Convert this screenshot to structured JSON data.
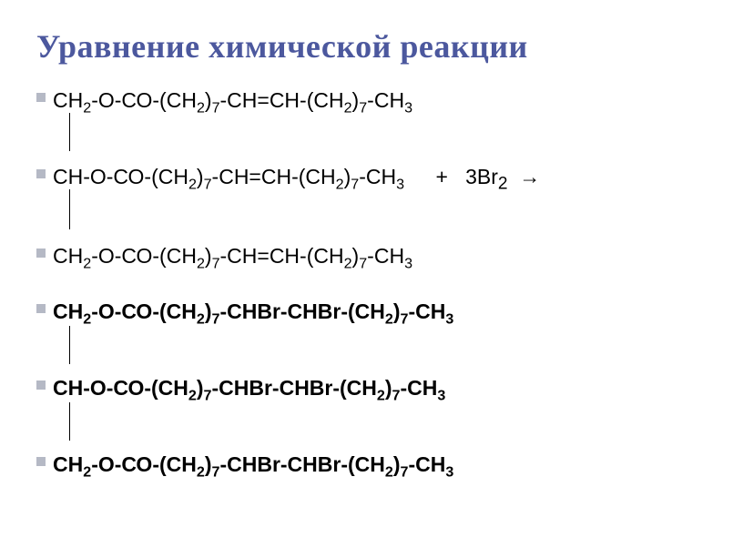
{
  "slide": {
    "title": "Уравнение химической реакции",
    "title_color": "#4c589e",
    "title_fontsize": 36,
    "background_color": "#ffffff",
    "bullet_color": "#b5b9c5",
    "bullet_size": 10,
    "text_color": "#000000",
    "formula_fontsize": 23
  },
  "items": [
    {
      "formula_html": "СН<sub>2</sub>-О-СО-(СН<sub>2</sub>)<sub>7</sub>-СН=СН-(СН<sub>2</sub>)<sub>7</sub>-СН<sub>3</sub>",
      "bold": false,
      "has_connector": true,
      "reagent": ""
    },
    {
      "formula_html": "СН-О-СО-(СН<sub>2</sub>)<sub>7</sub>-СН=СН-(СН<sub>2</sub>)<sub>7</sub>-СН<sub>3</sub>",
      "bold": false,
      "has_connector": true,
      "reagent": "+&nbsp;&nbsp;&nbsp;3Br<sub>2</sub>&nbsp;&nbsp;→"
    },
    {
      "formula_html": "СН<sub>2</sub>-О-СО-(СН<sub>2</sub>)<sub>7</sub>-СН=СН-(СН<sub>2</sub>)<sub>7</sub>-СН<sub>3</sub>",
      "bold": false,
      "has_connector": false,
      "reagent": ""
    },
    {
      "formula_html": "СН<sub>2</sub>-О-СО-(СН<sub>2</sub>)<sub>7</sub>-СНBr-CHBr-(СН<sub>2</sub>)<sub>7</sub>-СН<sub>3</sub>",
      "bold": true,
      "has_connector": true,
      "reagent": ""
    },
    {
      "formula_html": "СН-О-СО-(СН<sub>2</sub>)<sub>7</sub>-СНBr-CHBr-(СН<sub>2</sub>)<sub>7</sub>-СН<sub>3</sub>",
      "bold": true,
      "has_connector": true,
      "reagent": ""
    },
    {
      "formula_html": "СН<sub>2</sub>-О-СО-(СН<sub>2</sub>)<sub>7</sub>-СНBr-CHBr-(СН<sub>2</sub>)<sub>7</sub>-СН<sub>3</sub>",
      "bold": true,
      "has_connector": false,
      "reagent": ""
    }
  ]
}
